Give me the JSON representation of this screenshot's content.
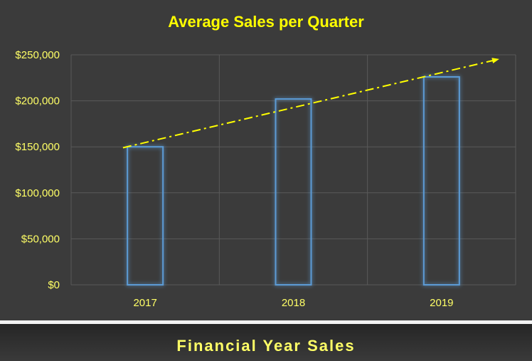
{
  "chart_data": {
    "type": "bar",
    "title": "Average Sales per Quarter",
    "categories": [
      "2017",
      "2018",
      "2019"
    ],
    "values": [
      150000,
      202000,
      226000
    ],
    "ylim": [
      0,
      250000
    ],
    "yticks": [
      "$0",
      "$50,000",
      "$100,000",
      "$150,000",
      "$200,000",
      "$250,000"
    ],
    "grid": true,
    "trendline": {
      "style": "dash-dot",
      "color": "#ffff00",
      "arrow": true
    },
    "bar_color": "#5b9bd5",
    "text_color": "#ffff66"
  },
  "footer": {
    "title": "Financial Year Sales"
  }
}
